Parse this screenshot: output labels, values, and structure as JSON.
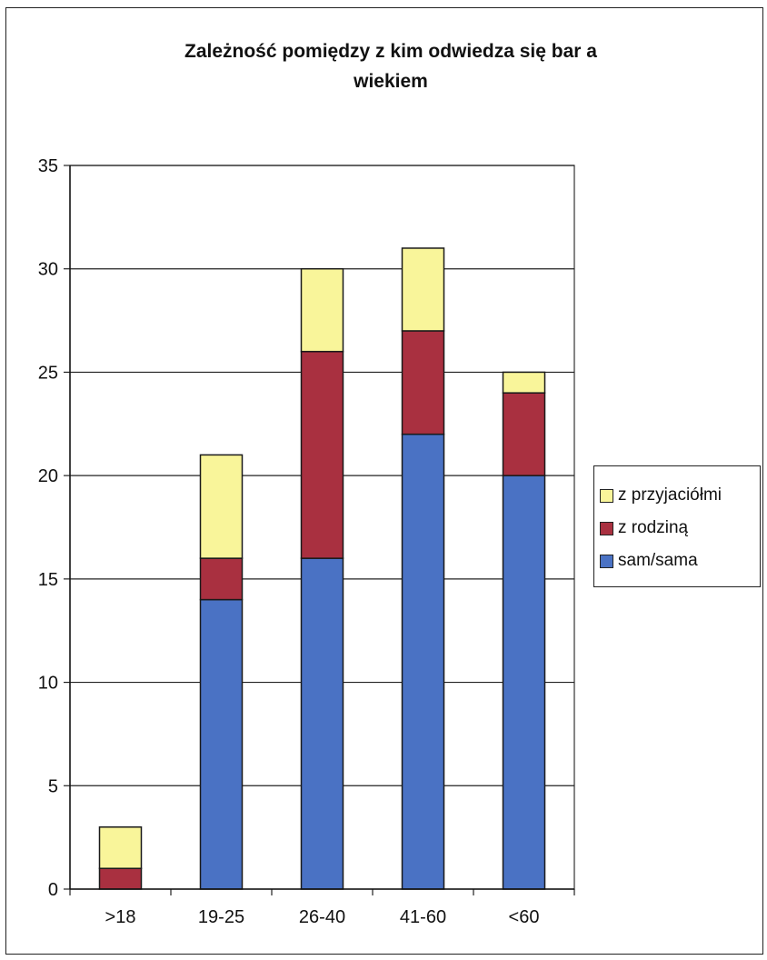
{
  "chart_data": {
    "type": "bar",
    "stacked": true,
    "title": "Zależność pomiędzy z kim odwiedza się bar a wiekiem",
    "title_lines": [
      "Zależność pomiędzy z kim odwiedza się bar a",
      "wiekiem"
    ],
    "categories": [
      ">18",
      "19-25",
      "26-40",
      "41-60",
      "<60"
    ],
    "series": [
      {
        "name": "sam/sama",
        "color": "#4a72c4",
        "values": [
          0,
          14,
          16,
          22,
          20
        ]
      },
      {
        "name": "z rodziną",
        "color": "#a93040",
        "values": [
          1,
          2,
          10,
          5,
          4
        ]
      },
      {
        "name": "z przyjaciółmi",
        "color": "#f9f59a",
        "values": [
          2,
          5,
          4,
          4,
          1
        ]
      }
    ],
    "legend_order": [
      "z przyjaciółmi",
      "z rodziną",
      "sam/sama"
    ],
    "ylim": [
      0,
      35
    ],
    "yticks": [
      "0",
      "5",
      "10",
      "15",
      "20",
      "25",
      "30",
      "35"
    ],
    "grid": true,
    "legend_position": "right"
  }
}
